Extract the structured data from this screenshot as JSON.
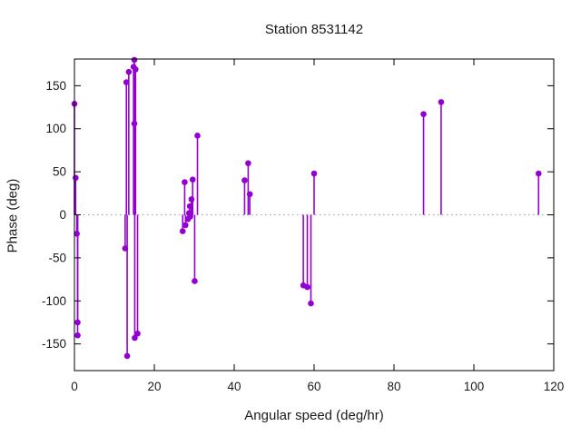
{
  "window": {
    "background": "#ffffff"
  },
  "chart_data": {
    "type": "scatter",
    "style": "impulses-with-points",
    "title": "Station 8531142",
    "xlabel": "Angular speed (deg/hr)",
    "ylabel": "Phase (deg)",
    "xlim": [
      0,
      120
    ],
    "ylim": [
      -181,
      181
    ],
    "xticks": [
      0,
      20,
      40,
      60,
      80,
      100,
      120
    ],
    "yticks": [
      -150,
      -100,
      -50,
      0,
      50,
      100,
      150
    ],
    "grid": false,
    "zero_line": true,
    "legend": "none",
    "series_color": "#9400d3",
    "zero_line_color": "#9a9a9a",
    "axis_color": "#000000",
    "points": [
      [
        0.0,
        129
      ],
      [
        0.3,
        43
      ],
      [
        0.6,
        -22
      ],
      [
        0.8,
        -125
      ],
      [
        0.8,
        -140
      ],
      [
        12.7,
        -39
      ],
      [
        13.0,
        154
      ],
      [
        13.2,
        -164
      ],
      [
        13.6,
        166
      ],
      [
        14.8,
        172
      ],
      [
        15.0,
        180
      ],
      [
        15.0,
        106
      ],
      [
        15.1,
        -143
      ],
      [
        15.3,
        169
      ],
      [
        15.8,
        -138
      ],
      [
        27.1,
        -19
      ],
      [
        27.6,
        38
      ],
      [
        27.8,
        -12
      ],
      [
        28.4,
        -5
      ],
      [
        28.7,
        2
      ],
      [
        28.9,
        10
      ],
      [
        29.0,
        -2
      ],
      [
        29.3,
        18
      ],
      [
        29.6,
        41
      ],
      [
        30.1,
        -77
      ],
      [
        30.8,
        92
      ],
      [
        42.6,
        40
      ],
      [
        43.5,
        60
      ],
      [
        43.9,
        24
      ],
      [
        57.3,
        -82
      ],
      [
        58.3,
        -84
      ],
      [
        59.2,
        -103
      ],
      [
        60.0,
        48
      ],
      [
        87.4,
        117
      ],
      [
        91.8,
        131
      ],
      [
        116.2,
        48
      ]
    ]
  }
}
